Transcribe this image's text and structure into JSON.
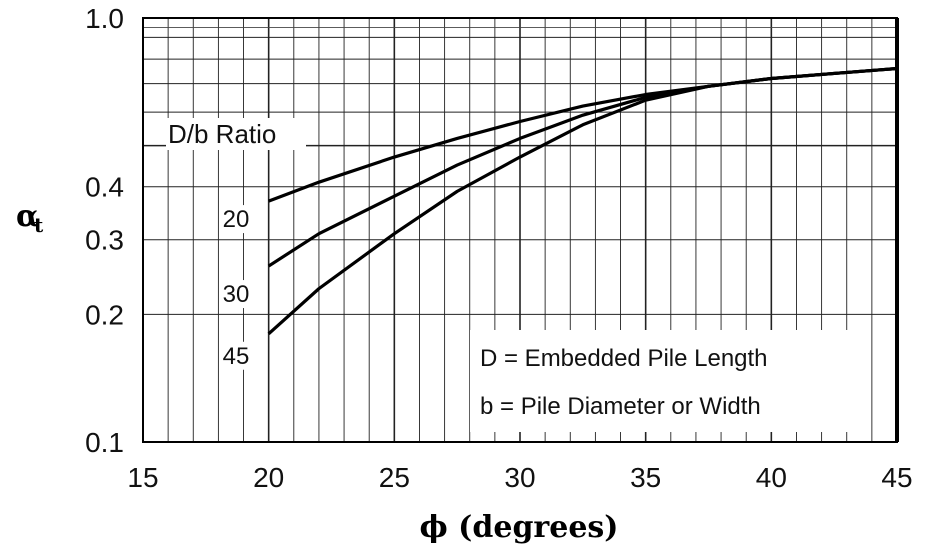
{
  "chart_data": {
    "type": "line",
    "xlabel": "ϕ (degrees)",
    "ylabel": "α",
    "ylabel_subscript": "t",
    "x_tick_labels": [
      "15",
      "20",
      "25",
      "30",
      "35",
      "40",
      "45"
    ],
    "y_tick_labels": [
      "1.0",
      "0.4",
      "0.3",
      "0.2",
      "0.1"
    ],
    "x_ticks": [
      15,
      20,
      25,
      30,
      35,
      40,
      45
    ],
    "y_ticks": [
      1.0,
      0.4,
      0.3,
      0.2,
      0.1
    ],
    "xlim": [
      15,
      45
    ],
    "ylim": [
      0.1,
      1.0
    ],
    "y_scale": "log",
    "grid": true,
    "legend_title": "D/b Ratio",
    "series": [
      {
        "name": "20",
        "x": [
          20,
          22,
          25,
          27.5,
          30,
          32.5,
          35,
          37.5,
          40,
          42.5,
          45
        ],
        "y": [
          0.37,
          0.41,
          0.47,
          0.52,
          0.57,
          0.62,
          0.66,
          0.69,
          0.72,
          0.74,
          0.76
        ]
      },
      {
        "name": "30",
        "x": [
          20,
          22,
          25,
          27.5,
          30,
          32.5,
          35,
          37.5,
          40,
          42.5,
          45
        ],
        "y": [
          0.26,
          0.31,
          0.38,
          0.45,
          0.52,
          0.59,
          0.65,
          0.69,
          0.72,
          0.74,
          0.76
        ]
      },
      {
        "name": "45",
        "x": [
          20,
          22,
          25,
          27.5,
          30,
          32.5,
          35,
          37.5,
          40,
          42.5,
          45
        ],
        "y": [
          0.18,
          0.23,
          0.31,
          0.39,
          0.47,
          0.56,
          0.64,
          0.69,
          0.72,
          0.74,
          0.76
        ]
      }
    ],
    "annotations": [
      "D = Embedded Pile Length",
      "b = Pile Diameter or Width"
    ]
  }
}
